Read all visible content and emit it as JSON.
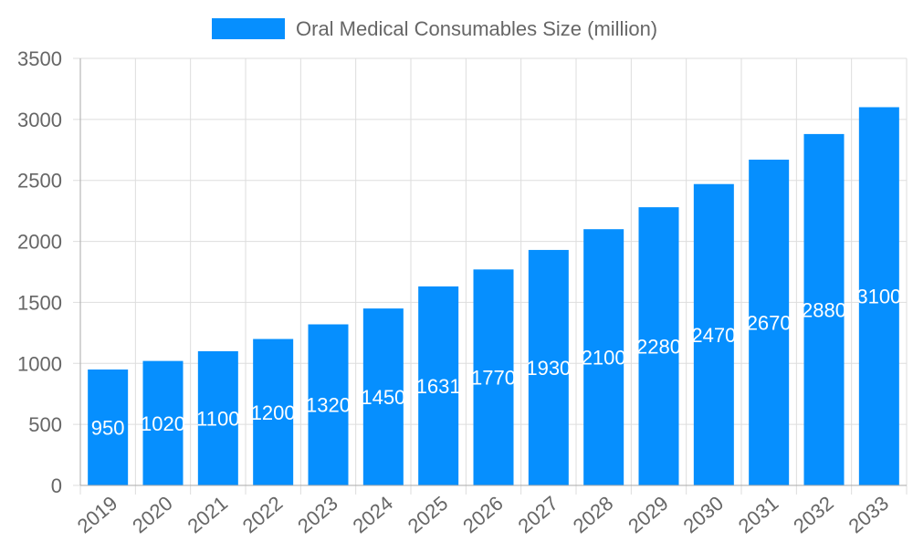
{
  "chart_data": {
    "type": "bar",
    "title": "",
    "xlabel": "",
    "ylabel": "",
    "categories": [
      "2019",
      "2020",
      "2021",
      "2022",
      "2023",
      "2024",
      "2025",
      "2026",
      "2027",
      "2028",
      "2029",
      "2030",
      "2031",
      "2032",
      "2033"
    ],
    "series": [
      {
        "name": "Oral Medical Consumables Size (million)",
        "values": [
          950,
          1020,
          1100,
          1200,
          1320,
          1450,
          1631,
          1770,
          1930,
          2100,
          2280,
          2470,
          2670,
          2880,
          3100
        ],
        "color": "#068ffe"
      }
    ],
    "ylim": [
      0,
      3500
    ],
    "yticks": [
      0,
      500,
      1000,
      1500,
      2000,
      2500,
      3000,
      3500
    ],
    "grid": true,
    "legend": "top-center",
    "data_labels": true
  }
}
